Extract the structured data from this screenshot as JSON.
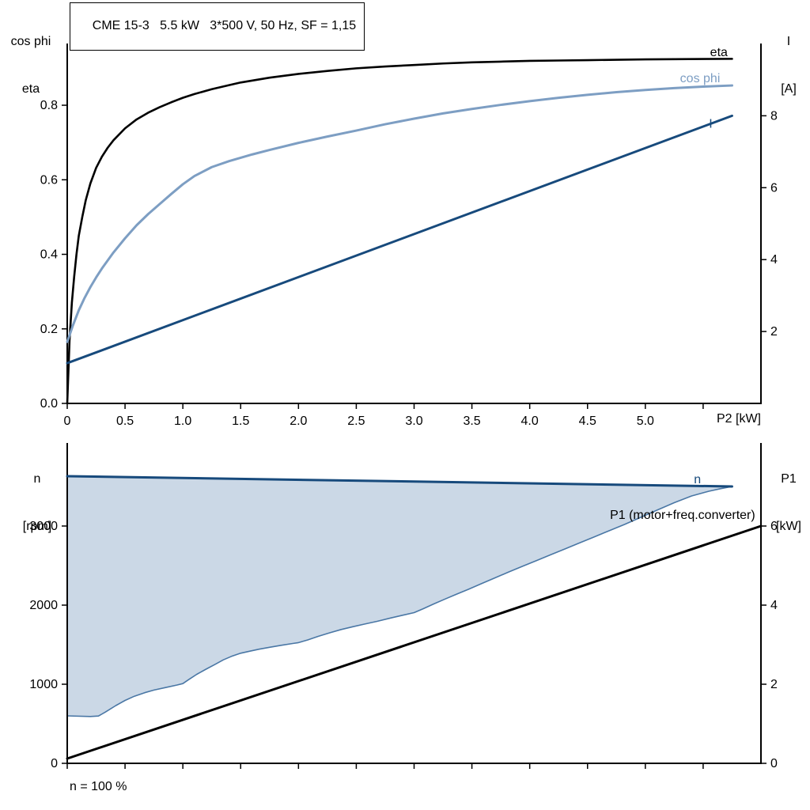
{
  "page": {
    "background": "#ffffff"
  },
  "chart_data": [
    {
      "type": "line",
      "title": "CME 15-3   5.5 kW   3*500 V, 50 Hz, SF = 1,15",
      "xlabel": "P2 [kW]",
      "ylabel_left_lines": [
        "cos phi",
        "eta"
      ],
      "ylabel_right_lines": [
        "I",
        "[A]"
      ],
      "grid": false,
      "legend": "inline-labels-at-right",
      "xlim": [
        0,
        6
      ],
      "xticks": [
        0,
        0.5,
        1,
        1.5,
        2,
        2.5,
        3,
        3.5,
        4,
        4.5,
        5,
        5.5
      ],
      "xtick_labels": [
        "0",
        "0.5",
        "1.0",
        "1.5",
        "2.0",
        "2.5",
        "3.0",
        "3.5",
        "4.0",
        "4.5",
        "5.0",
        ""
      ],
      "left_axis": {
        "lim": [
          0,
          0.955
        ],
        "ticks": [
          0,
          0.2,
          0.4,
          0.6,
          0.8
        ],
        "labels": [
          "0.0",
          "0.2",
          "0.4",
          "0.6",
          "0.8"
        ]
      },
      "right_axis": {
        "lim": [
          0,
          9.9
        ],
        "ticks": [
          2,
          4,
          6,
          8
        ],
        "labels": [
          "2",
          "4",
          "6",
          "8"
        ]
      },
      "series": [
        {
          "name": "eta",
          "axis": "left",
          "color": "#000000",
          "width": 2.6,
          "label_at": [
            5.56,
            0.942
          ],
          "label_anchor": "start",
          "points": [
            [
              0,
              0
            ],
            [
              0.02,
              0.17
            ],
            [
              0.04,
              0.27
            ],
            [
              0.06,
              0.34
            ],
            [
              0.08,
              0.4
            ],
            [
              0.1,
              0.45
            ],
            [
              0.13,
              0.5
            ],
            [
              0.16,
              0.545
            ],
            [
              0.2,
              0.59
            ],
            [
              0.25,
              0.632
            ],
            [
              0.3,
              0.662
            ],
            [
              0.35,
              0.686
            ],
            [
              0.4,
              0.706
            ],
            [
              0.5,
              0.738
            ],
            [
              0.6,
              0.762
            ],
            [
              0.7,
              0.78
            ],
            [
              0.8,
              0.795
            ],
            [
              0.9,
              0.808
            ],
            [
              1.0,
              0.82
            ],
            [
              1.1,
              0.83
            ],
            [
              1.25,
              0.843
            ],
            [
              1.4,
              0.854
            ],
            [
              1.5,
              0.861
            ],
            [
              1.75,
              0.874
            ],
            [
              2.0,
              0.884
            ],
            [
              2.25,
              0.892
            ],
            [
              2.5,
              0.899
            ],
            [
              2.75,
              0.904
            ],
            [
              3.0,
              0.908
            ],
            [
              3.25,
              0.912
            ],
            [
              3.5,
              0.915
            ],
            [
              3.75,
              0.917
            ],
            [
              4.0,
              0.919
            ],
            [
              4.25,
              0.92
            ],
            [
              4.5,
              0.921
            ],
            [
              4.75,
              0.922
            ],
            [
              5.0,
              0.923
            ],
            [
              5.25,
              0.9235
            ],
            [
              5.5,
              0.924
            ],
            [
              5.75,
              0.9245
            ]
          ]
        },
        {
          "name": "cos phi",
          "axis": "left",
          "color": "#7d9ec3",
          "width": 3,
          "label_at": [
            5.3,
            0.872
          ],
          "label_anchor": "start",
          "points": [
            [
              0,
              0.165
            ],
            [
              0.05,
              0.21
            ],
            [
              0.1,
              0.25
            ],
            [
              0.15,
              0.283
            ],
            [
              0.2,
              0.312
            ],
            [
              0.25,
              0.338
            ],
            [
              0.3,
              0.362
            ],
            [
              0.4,
              0.405
            ],
            [
              0.5,
              0.443
            ],
            [
              0.6,
              0.478
            ],
            [
              0.7,
              0.508
            ],
            [
              0.8,
              0.535
            ],
            [
              0.9,
              0.562
            ],
            [
              1.0,
              0.588
            ],
            [
              1.1,
              0.61
            ],
            [
              1.25,
              0.634
            ],
            [
              1.4,
              0.65
            ],
            [
              1.5,
              0.659
            ],
            [
              1.6,
              0.668
            ],
            [
              1.75,
              0.68
            ],
            [
              2.0,
              0.699
            ],
            [
              2.25,
              0.716
            ],
            [
              2.5,
              0.732
            ],
            [
              2.75,
              0.749
            ],
            [
              3.0,
              0.764
            ],
            [
              3.25,
              0.778
            ],
            [
              3.5,
              0.79
            ],
            [
              3.75,
              0.801
            ],
            [
              4.0,
              0.811
            ],
            [
              4.25,
              0.82
            ],
            [
              4.5,
              0.828
            ],
            [
              4.75,
              0.835
            ],
            [
              5.0,
              0.841
            ],
            [
              5.25,
              0.846
            ],
            [
              5.5,
              0.85
            ],
            [
              5.75,
              0.853
            ]
          ]
        },
        {
          "name": "I",
          "axis": "right",
          "color": "#174a7c",
          "width": 3,
          "label_at": [
            5.55,
            7.78
          ],
          "label_anchor": "start",
          "points": [
            [
              0,
              1.12
            ],
            [
              5.75,
              8.0
            ]
          ]
        }
      ]
    },
    {
      "type": "line",
      "title": "",
      "xlabel": "",
      "footnote": "n = 100 %",
      "ylabel_left_lines": [
        "n",
        "[rpm]"
      ],
      "ylabel_right_lines": [
        "P1",
        "[kW]"
      ],
      "grid": false,
      "xlim": [
        0,
        6
      ],
      "xticks": [
        0,
        0.5,
        1,
        1.5,
        2,
        2.5,
        3,
        3.5,
        4,
        4.5,
        5,
        5.5
      ],
      "xtick_labels": [
        "",
        "",
        "",
        "",
        "",
        "",
        "",
        "",
        "",
        "",
        "",
        ""
      ],
      "left_axis": {
        "lim": [
          0,
          4000
        ],
        "ticks": [
          0,
          1000,
          2000,
          3000
        ],
        "labels": [
          "0",
          "1000",
          "2000",
          "3000"
        ]
      },
      "right_axis": {
        "lim": [
          0,
          8
        ],
        "ticks": [
          0,
          2,
          4,
          6
        ],
        "labels": [
          "0",
          "2",
          "4",
          "6"
        ]
      },
      "area": {
        "name": "speed-range",
        "fill": "#cbd8e6",
        "edge_color": "#4a77a5",
        "edge_width": 1.6,
        "upper": [
          [
            0,
            3630
          ],
          [
            5.75,
            3500
          ]
        ],
        "lower": [
          [
            0,
            600
          ],
          [
            0.2,
            592
          ],
          [
            0.27,
            598
          ],
          [
            0.33,
            648
          ],
          [
            0.42,
            730
          ],
          [
            0.5,
            795
          ],
          [
            0.58,
            848
          ],
          [
            0.67,
            893
          ],
          [
            0.75,
            926
          ],
          [
            0.85,
            958
          ],
          [
            0.95,
            990
          ],
          [
            1.0,
            1008
          ],
          [
            1.05,
            1058
          ],
          [
            1.12,
            1125
          ],
          [
            1.2,
            1190
          ],
          [
            1.28,
            1252
          ],
          [
            1.35,
            1308
          ],
          [
            1.42,
            1352
          ],
          [
            1.5,
            1392
          ],
          [
            1.58,
            1418
          ],
          [
            1.66,
            1443
          ],
          [
            1.75,
            1467
          ],
          [
            1.85,
            1492
          ],
          [
            1.95,
            1515
          ],
          [
            2.0,
            1526
          ],
          [
            2.08,
            1560
          ],
          [
            2.17,
            1605
          ],
          [
            2.27,
            1650
          ],
          [
            2.37,
            1692
          ],
          [
            2.47,
            1727
          ],
          [
            2.57,
            1760
          ],
          [
            2.68,
            1795
          ],
          [
            2.8,
            1838
          ],
          [
            2.9,
            1872
          ],
          [
            3.0,
            1905
          ],
          [
            3.08,
            1955
          ],
          [
            3.17,
            2015
          ],
          [
            3.27,
            2078
          ],
          [
            3.37,
            2140
          ],
          [
            3.47,
            2200
          ],
          [
            3.58,
            2270
          ],
          [
            3.7,
            2345
          ],
          [
            3.82,
            2420
          ],
          [
            3.94,
            2492
          ],
          [
            4.06,
            2564
          ],
          [
            4.18,
            2636
          ],
          [
            4.3,
            2708
          ],
          [
            4.42,
            2780
          ],
          [
            4.55,
            2858
          ],
          [
            4.68,
            2936
          ],
          [
            4.82,
            3020
          ],
          [
            4.96,
            3110
          ],
          [
            5.1,
            3200
          ],
          [
            5.25,
            3295
          ],
          [
            5.4,
            3380
          ],
          [
            5.55,
            3440
          ],
          [
            5.65,
            3472
          ],
          [
            5.75,
            3500
          ]
        ]
      },
      "series": [
        {
          "name": "n",
          "axis": "left",
          "color": "#174a7c",
          "width": 3,
          "label_at": [
            5.42,
            3590
          ],
          "label_anchor": "start",
          "points": [
            [
              0,
              3630
            ],
            [
              5.75,
              3500
            ]
          ]
        },
        {
          "name": "P1 (motor+freq.converter)",
          "axis": "right",
          "color": "#000000",
          "width": 3,
          "label_at": [
            5.95,
            6.28
          ],
          "label_anchor": "end",
          "points": [
            [
              0,
              0.12
            ],
            [
              6,
              6
            ]
          ]
        }
      ]
    }
  ]
}
